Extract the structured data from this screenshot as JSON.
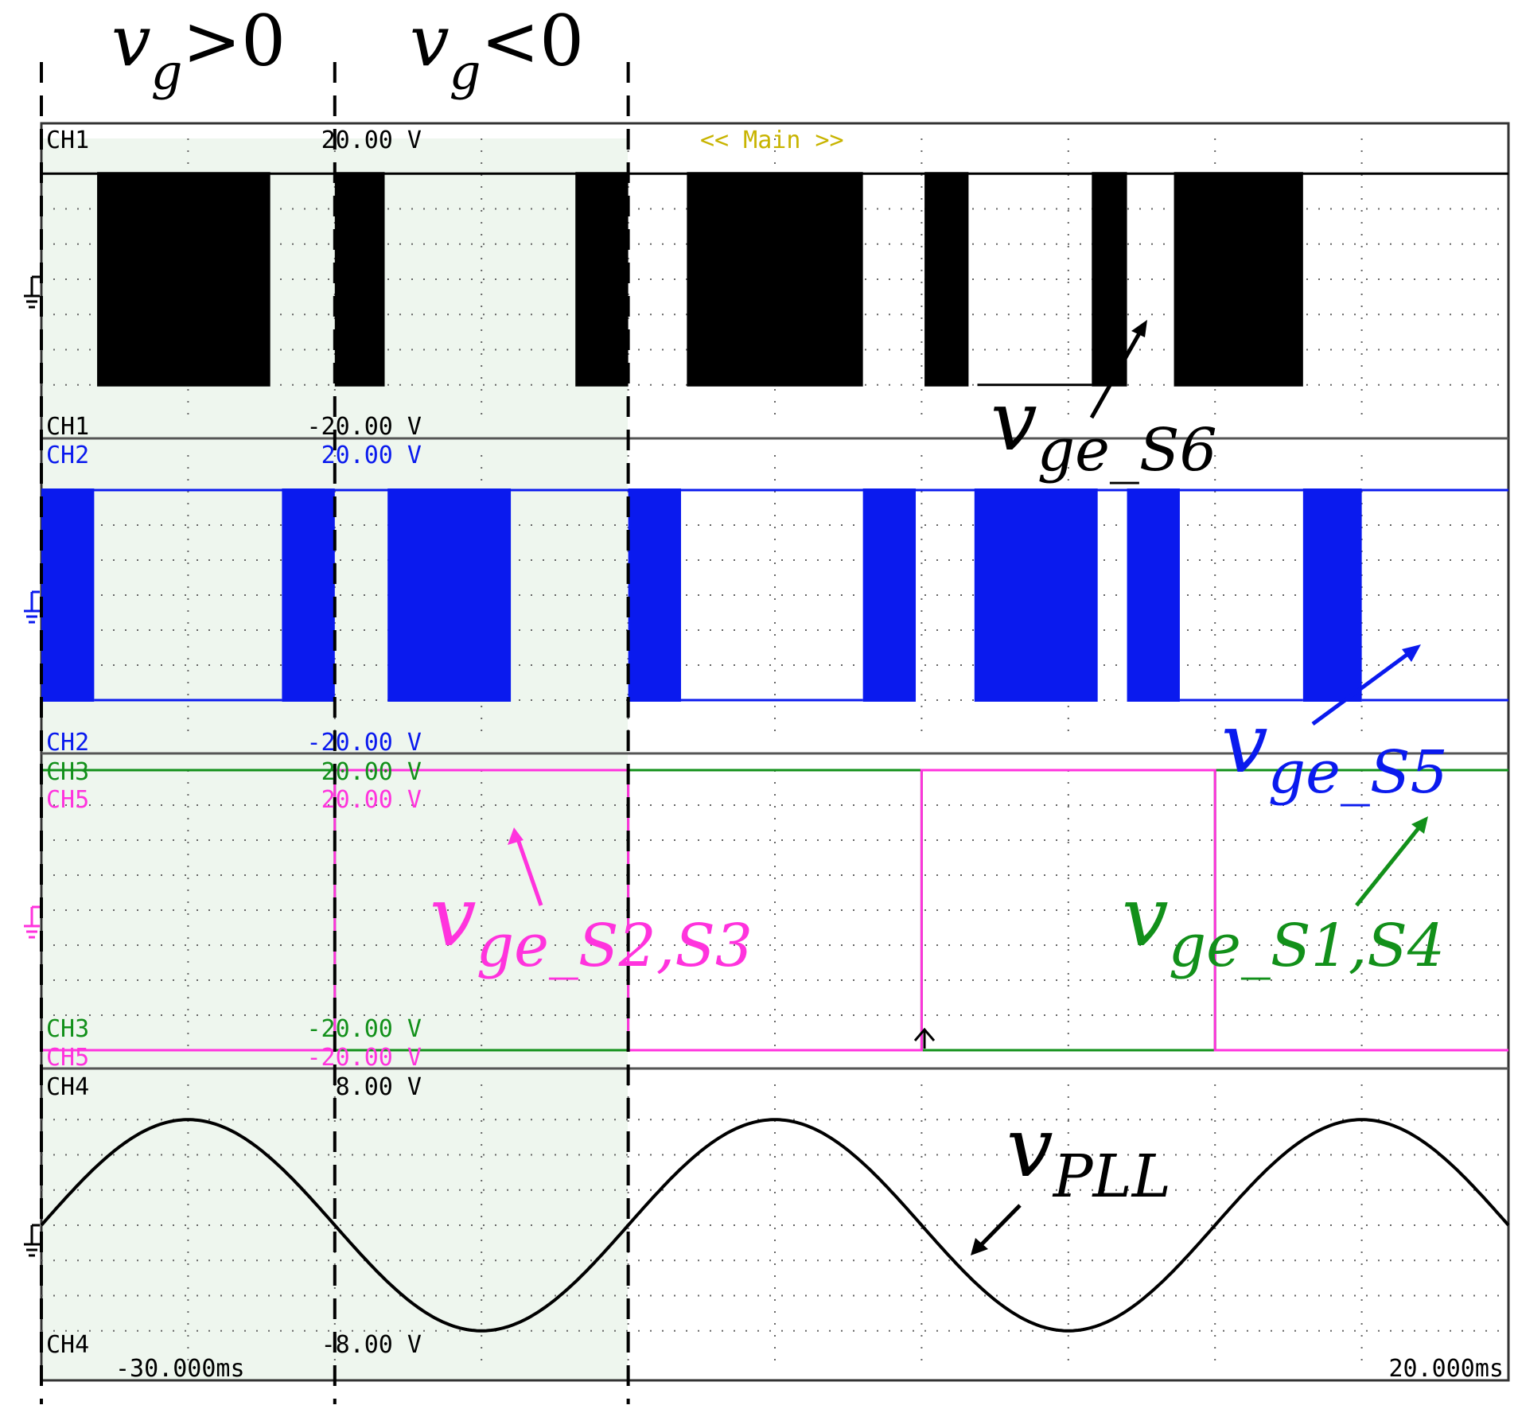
{
  "colors": {
    "ch1": "#000000",
    "ch2": "#0a1aee",
    "ch3": "#12901a",
    "ch5": "#ff33dd",
    "ch4": "#000000",
    "main_label": "#c8b400",
    "shade": "#eef6ee",
    "grid": "#666666"
  },
  "header": {
    "region_pos": {
      "v": "v",
      "sub": "g",
      "rel": ">0"
    },
    "region_neg": {
      "v": "v",
      "sub": "g",
      "rel": "<0"
    },
    "main_label": "<< Main >>"
  },
  "channels": {
    "ch1": {
      "name": "CH1",
      "top": "20.00 V",
      "bottom": "-20.00 V"
    },
    "ch2": {
      "name": "CH2",
      "top": "20.00 V",
      "bottom": "-20.00 V"
    },
    "ch3": {
      "name": "CH3",
      "top": "20.00 V",
      "bottom": "-20.00 V"
    },
    "ch5": {
      "name": "CH5",
      "top": "20.00 V",
      "bottom": "-20.00 V"
    },
    "ch4": {
      "name": "CH4",
      "top": "8.00 V",
      "bottom": "-8.00 V"
    }
  },
  "time": {
    "start": "-30.000ms",
    "end": "20.000ms"
  },
  "annotations": {
    "s6": {
      "v": "v",
      "sub": "ge_S6"
    },
    "s5": {
      "v": "v",
      "sub": "ge_S5"
    },
    "s23": {
      "v": "v",
      "sub": "ge_S2,S3"
    },
    "s14": {
      "v": "v",
      "sub": "ge_S1,S4"
    },
    "pll": {
      "v": "v",
      "sub": "PLL"
    }
  },
  "chart_data": {
    "type": "line",
    "title": "<< Main >>",
    "x_range_ms": [
      -30,
      20
    ],
    "x_divisions": 10,
    "y_divisions_per_panel": 8,
    "time_markers_ms": [
      -30,
      -20,
      -10
    ],
    "regions": [
      {
        "label": "vg>0",
        "from_ms": -30,
        "to_ms": -20
      },
      {
        "label": "vg<0",
        "from_ms": -20,
        "to_ms": -10
      }
    ],
    "series": [
      {
        "name": "vge_S6",
        "channel": "CH1",
        "panel": 0,
        "kind": "pwm",
        "high_V": 15,
        "low_V": -15,
        "vrange_V": [
          -20,
          20
        ],
        "pwm_blocks_ms": [
          [
            -28.1,
            -22.2
          ],
          [
            -20.0,
            -18.3
          ],
          [
            -11.8,
            -10.0
          ],
          [
            -8.0,
            -2.0
          ],
          [
            0.1,
            1.6
          ],
          [
            5.8,
            7.0
          ],
          [
            8.6,
            13.0
          ]
        ],
        "low_intervals_ms": [
          [
            1.9,
            5.8
          ]
        ]
      },
      {
        "name": "vge_S5",
        "channel": "CH2",
        "panel": 1,
        "kind": "pwm",
        "high_V": 15,
        "low_V": -15,
        "vrange_V": [
          -20,
          20
        ],
        "pwm_blocks_ms": [
          [
            -30.0,
            -28.2
          ],
          [
            -21.8,
            -20.0
          ],
          [
            -18.2,
            -14.0
          ],
          [
            -10.0,
            -8.2
          ],
          [
            -2.0,
            -0.2
          ],
          [
            1.8,
            6.0
          ],
          [
            7.0,
            8.8
          ],
          [
            13.0,
            15.0
          ]
        ],
        "low_intervals_ms": [
          [
            -28.2,
            -21.8
          ],
          [
            -8.2,
            -2.0
          ],
          [
            8.8,
            13.0
          ],
          [
            15.0,
            20.0
          ]
        ]
      },
      {
        "name": "vge_S1,S4",
        "channel": "CH3",
        "panel": 2,
        "kind": "square",
        "vrange_V": [
          -20,
          20
        ],
        "levels": [
          [
            -30,
            -20,
            20
          ],
          [
            -20,
            -10,
            -20
          ],
          [
            -10,
            0,
            20
          ],
          [
            0,
            10,
            -20
          ],
          [
            10,
            20,
            20
          ]
        ]
      },
      {
        "name": "vge_S2,S3",
        "channel": "CH5",
        "panel": 2,
        "kind": "square",
        "vrange_V": [
          -20,
          20
        ],
        "levels": [
          [
            -30,
            -20,
            -20
          ],
          [
            -20,
            -10,
            20
          ],
          [
            -10,
            0,
            -20
          ],
          [
            0,
            10,
            20
          ],
          [
            10,
            20,
            -20
          ]
        ]
      },
      {
        "name": "vPLL",
        "channel": "CH4",
        "panel": 3,
        "kind": "sine",
        "vrange_V": [
          -8,
          8
        ],
        "amplitude_V": 6,
        "period_ms": 20,
        "zero_cross_rising_ms": -30
      }
    ]
  }
}
